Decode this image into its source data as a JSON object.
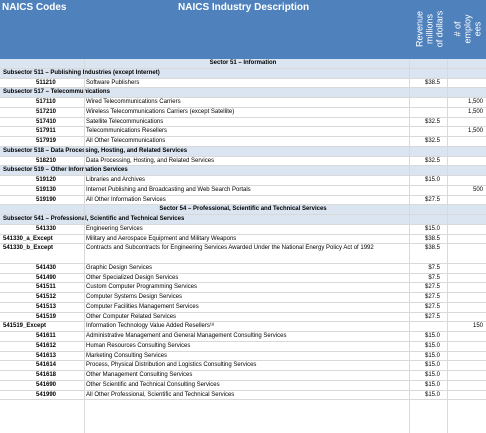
{
  "header": {
    "codes": "NAICS Codes",
    "description": "NAICS Industry Description",
    "revenue": "Revenue\nmillions\nof dollars",
    "employees": "# of\nemploy\nees"
  },
  "rows": [
    {
      "type": "sector",
      "text": "Sector 51 – Information"
    },
    {
      "type": "sub",
      "text": "Subsector 511 – Publishing Industries (except Internet)"
    },
    {
      "type": "det",
      "code": "511210",
      "desc": "Software Publishers",
      "rev": "$38.5",
      "emp": ""
    },
    {
      "type": "sub",
      "text": "Subsector 517 – Telecommunications"
    },
    {
      "type": "det",
      "code": "517110",
      "desc": "Wired Telecommunications Carriers",
      "rev": "",
      "emp": "1,500"
    },
    {
      "type": "det",
      "code": "517210",
      "desc": "Wireless Telecommunications Carriers (except Satellite)",
      "rev": "",
      "emp": "1,500"
    },
    {
      "type": "det",
      "code": "517410",
      "desc": "Satellite Telecommunications",
      "rev": "$32.5",
      "emp": ""
    },
    {
      "type": "det",
      "code": "517911",
      "desc": "Telecommunications Resellers",
      "rev": "",
      "emp": "1,500"
    },
    {
      "type": "det",
      "code": "517919",
      "desc": "All Other Telecommunications",
      "rev": "$32.5",
      "emp": ""
    },
    {
      "type": "sub",
      "text": "Subsector 518 – Data Processing, Hosting, and Related Services"
    },
    {
      "type": "det",
      "code": "518210",
      "desc": "Data Processing, Hosting, and Related Services",
      "rev": "$32.5",
      "emp": ""
    },
    {
      "type": "sub",
      "text": "Subsector 519 – Other Information Services"
    },
    {
      "type": "det",
      "code": "519120",
      "desc": "Libraries and Archives",
      "rev": "$15.0",
      "emp": ""
    },
    {
      "type": "det",
      "code": "519130",
      "desc": "Internet Publishing and Broadcasting and Web Search Portals",
      "rev": "",
      "emp": "500"
    },
    {
      "type": "det",
      "code": "519190",
      "desc": "All Other Information Services",
      "rev": "$27.5",
      "emp": ""
    },
    {
      "type": "sector",
      "text": "Sector 54 – Professional, Scientific and Technical Services"
    },
    {
      "type": "sub",
      "text": "Subsector 541 – Professional, Scientific and Technical Services"
    },
    {
      "type": "det",
      "code": "541330",
      "desc": "Engineering Services",
      "rev": "$15.0",
      "emp": ""
    },
    {
      "type": "det",
      "code": "541330_a_Except",
      "desc": "Military and Aerospace Equipment and Military Weapons",
      "rev": "$38.5",
      "emp": "",
      "exc": true
    },
    {
      "type": "det",
      "code": "541330_b_Except",
      "desc": "Contracts and Subcontracts for Engineering Services Awarded Under the National Energy Policy Act of 1992",
      "rev": "$38.5",
      "emp": "",
      "exc": true,
      "tall": true
    },
    {
      "type": "det",
      "code": "541430",
      "desc": "Graphic Design Services",
      "rev": "$7.5",
      "emp": ""
    },
    {
      "type": "det",
      "code": "541490",
      "desc": "Other Specialized Design Services",
      "rev": "$7.5",
      "emp": ""
    },
    {
      "type": "det",
      "code": "541511",
      "desc": "Custom Computer Programming Services",
      "rev": "$27.5",
      "emp": ""
    },
    {
      "type": "det",
      "code": "541512",
      "desc": "Computer Systems Design Services",
      "rev": "$27.5",
      "emp": ""
    },
    {
      "type": "det",
      "code": "541513",
      "desc": "Computer Facilities Management Services",
      "rev": "$27.5",
      "emp": ""
    },
    {
      "type": "det",
      "code": "541519",
      "desc": "Other Computer Related Services",
      "rev": "$27.5",
      "emp": ""
    },
    {
      "type": "det",
      "code": "541519_Except",
      "desc": "Information Technology Value Added Resellers¹⁸",
      "rev": "",
      "emp": "150",
      "exc": true
    },
    {
      "type": "det",
      "code": "541611",
      "desc": "Administrative Management and General Management Consulting Services",
      "rev": "$15.0",
      "emp": ""
    },
    {
      "type": "det",
      "code": "541612",
      "desc": "Human Resources Consulting Services",
      "rev": "$15.0",
      "emp": ""
    },
    {
      "type": "det",
      "code": "541613",
      "desc": "Marketing Consulting Services",
      "rev": "$15.0",
      "emp": ""
    },
    {
      "type": "det",
      "code": "541614",
      "desc": "Process, Physical Distribution and Logistics Consulting Services",
      "rev": "$15.0",
      "emp": ""
    },
    {
      "type": "det",
      "code": "541618",
      "desc": "Other Management Consulting Services",
      "rev": "$15.0",
      "emp": ""
    },
    {
      "type": "det",
      "code": "541690",
      "desc": "Other Scientific and Technical Consulting Services",
      "rev": "$15.0",
      "emp": ""
    },
    {
      "type": "det",
      "code": "541990",
      "desc": "All Other Professional, Scientific and Technical Services",
      "rev": "$15.0",
      "emp": ""
    }
  ]
}
